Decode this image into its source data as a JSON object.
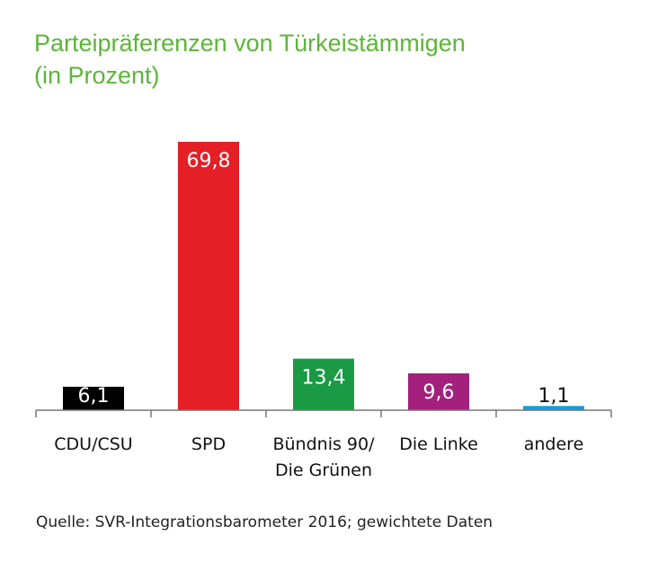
{
  "header": {
    "title_line1": "Parteipräferenzen von Türkeistämmigen",
    "title_line2": "(in Prozent)"
  },
  "footer": {
    "source": "Quelle: SVR-Integrationsbarometer 2016; gewichtete Daten"
  },
  "chart_data": {
    "type": "bar",
    "title": "Parteipräferenzen von Türkeistämmigen (in Prozent)",
    "categories": [
      [
        "CDU/CSU"
      ],
      [
        "SPD"
      ],
      [
        "Bündnis 90/",
        "Die Grünen"
      ],
      [
        "Die Linke"
      ],
      [
        "andere"
      ]
    ],
    "values": [
      6.1,
      69.8,
      13.4,
      9.6,
      1.1
    ],
    "value_labels": [
      "6,1",
      "69,8",
      "13,4",
      "9,6",
      "1,1"
    ],
    "colors": [
      "#000000",
      "#e41f26",
      "#1a9a45",
      "#a3217d",
      "#1a9ad6"
    ],
    "label_colors": [
      "#ffffff",
      "#ffffff",
      "#ffffff",
      "#ffffff",
      "#111111"
    ],
    "xlabel": "",
    "ylabel": "",
    "ylim": [
      0,
      69.8
    ],
    "grid": false
  }
}
